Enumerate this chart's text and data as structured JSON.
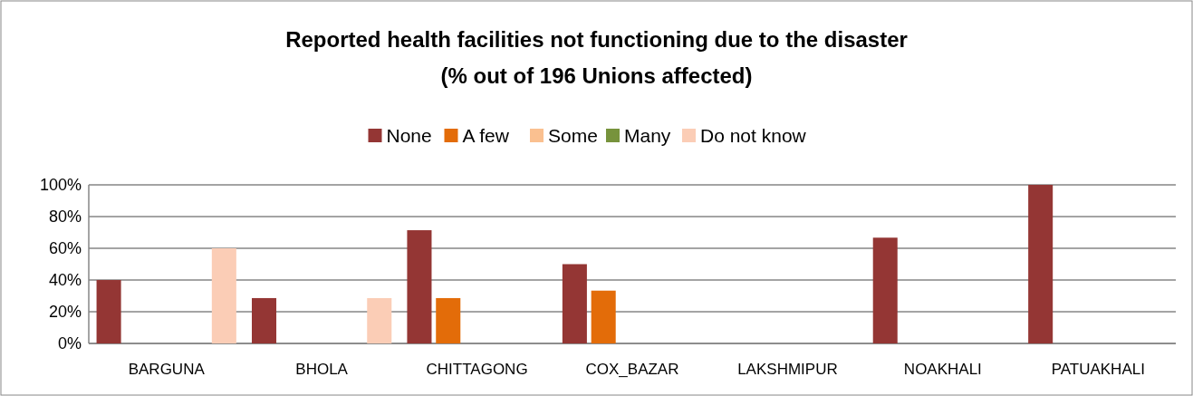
{
  "chart_data": {
    "type": "bar",
    "title": "Reported health facilities not functioning due to the disaster",
    "subtitle": "(% out of 196 Unions affected)",
    "categories": [
      "BARGUNA",
      "BHOLA",
      "CHITTAGONG",
      "COX_BAZAR",
      "LAKSHMIPUR",
      "NOAKHALI",
      "PATUAKHALI"
    ],
    "series": [
      {
        "name": "None",
        "color": "#943634",
        "values": [
          40,
          28.6,
          71.4,
          50,
          0,
          66.7,
          100
        ]
      },
      {
        "name": "A few",
        "color": "#e36c09",
        "values": [
          0,
          0,
          28.6,
          33.3,
          0,
          0,
          0
        ]
      },
      {
        "name": "Some",
        "color": "#fac090",
        "values": [
          0,
          0,
          0,
          0,
          0,
          0,
          0
        ]
      },
      {
        "name": "Many",
        "color": "#77933c",
        "values": [
          0,
          0,
          0,
          0,
          0,
          0,
          0
        ]
      },
      {
        "name": "Do not know",
        "color": "#fbcdb6",
        "values": [
          60,
          28.6,
          0,
          0,
          0,
          0,
          0
        ]
      }
    ],
    "ylim": [
      0,
      100
    ],
    "yticks": [
      {
        "value": 0,
        "label": "0%"
      },
      {
        "value": 20,
        "label": "20%"
      },
      {
        "value": 40,
        "label": "40%"
      },
      {
        "value": 60,
        "label": "60%"
      },
      {
        "value": 80,
        "label": "80%"
      },
      {
        "value": 100,
        "label": "100%"
      }
    ],
    "grid": "y",
    "legend": "top"
  }
}
